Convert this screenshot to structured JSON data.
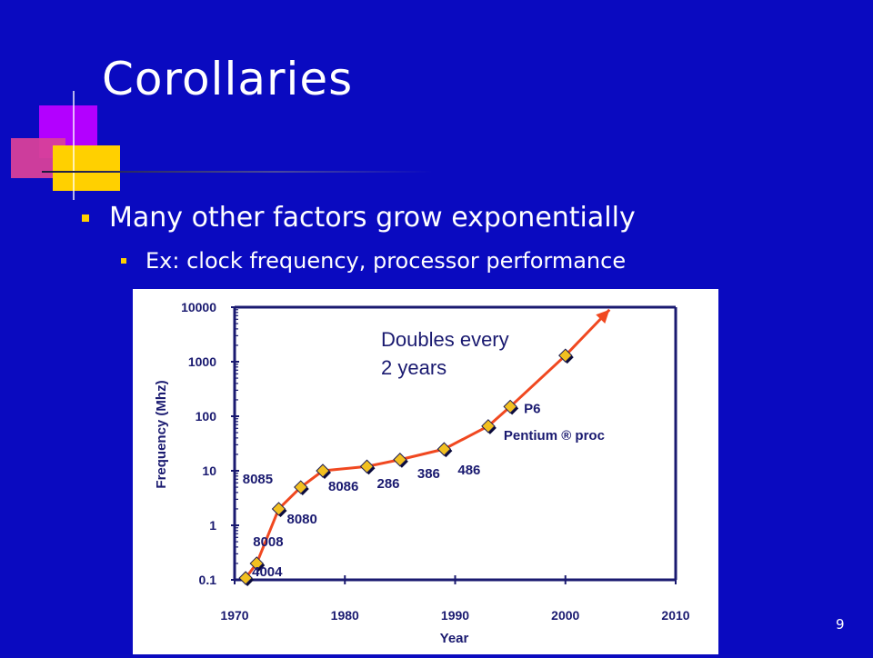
{
  "slide": {
    "title": "Corollaries",
    "bullet1": "Many other factors grow exponentially",
    "bullet2": "Ex: clock frequency, processor performance",
    "page_number": "9",
    "colors": {
      "background": "#0a0ac0",
      "accent": "#ffd000",
      "magenta": "#b300ff",
      "line": "#f04820",
      "axis": "#1a1a70"
    }
  },
  "chart_data": {
    "type": "line",
    "title": "",
    "xlabel": "Year",
    "ylabel": "Frequency (Mhz)",
    "xlim": [
      1970,
      2010
    ],
    "ylim": [
      0.1,
      10000
    ],
    "y_scale": "log",
    "x_ticks": [
      "1970",
      "1980",
      "1990",
      "2000",
      "2010"
    ],
    "y_ticks": [
      "10000",
      "1000",
      "100",
      "10",
      "1",
      "0.1"
    ],
    "annotation": "Doubles every\n2 years",
    "annotation_lines": [
      "Doubles every",
      "2 years"
    ],
    "series": [
      {
        "points": [
          {
            "x": 1971,
            "y": 0.108,
            "label": "4004"
          },
          {
            "x": 1972,
            "y": 0.2,
            "label": "8008"
          },
          {
            "x": 1974,
            "y": 2,
            "label": "8080"
          },
          {
            "x": 1976,
            "y": 5,
            "label": "8085"
          },
          {
            "x": 1978,
            "y": 10,
            "label": "8086"
          },
          {
            "x": 1982,
            "y": 12,
            "label": "286"
          },
          {
            "x": 1985,
            "y": 16,
            "label": "386"
          },
          {
            "x": 1989,
            "y": 25,
            "label": "486"
          },
          {
            "x": 1993,
            "y": 66,
            "label": "Pentium ® proc"
          },
          {
            "x": 1995,
            "y": 150,
            "label": "P6"
          },
          {
            "x": 2000,
            "y": 1300,
            "label": ""
          }
        ],
        "trend_end": {
          "x": 2004,
          "y": 9000
        }
      }
    ]
  }
}
